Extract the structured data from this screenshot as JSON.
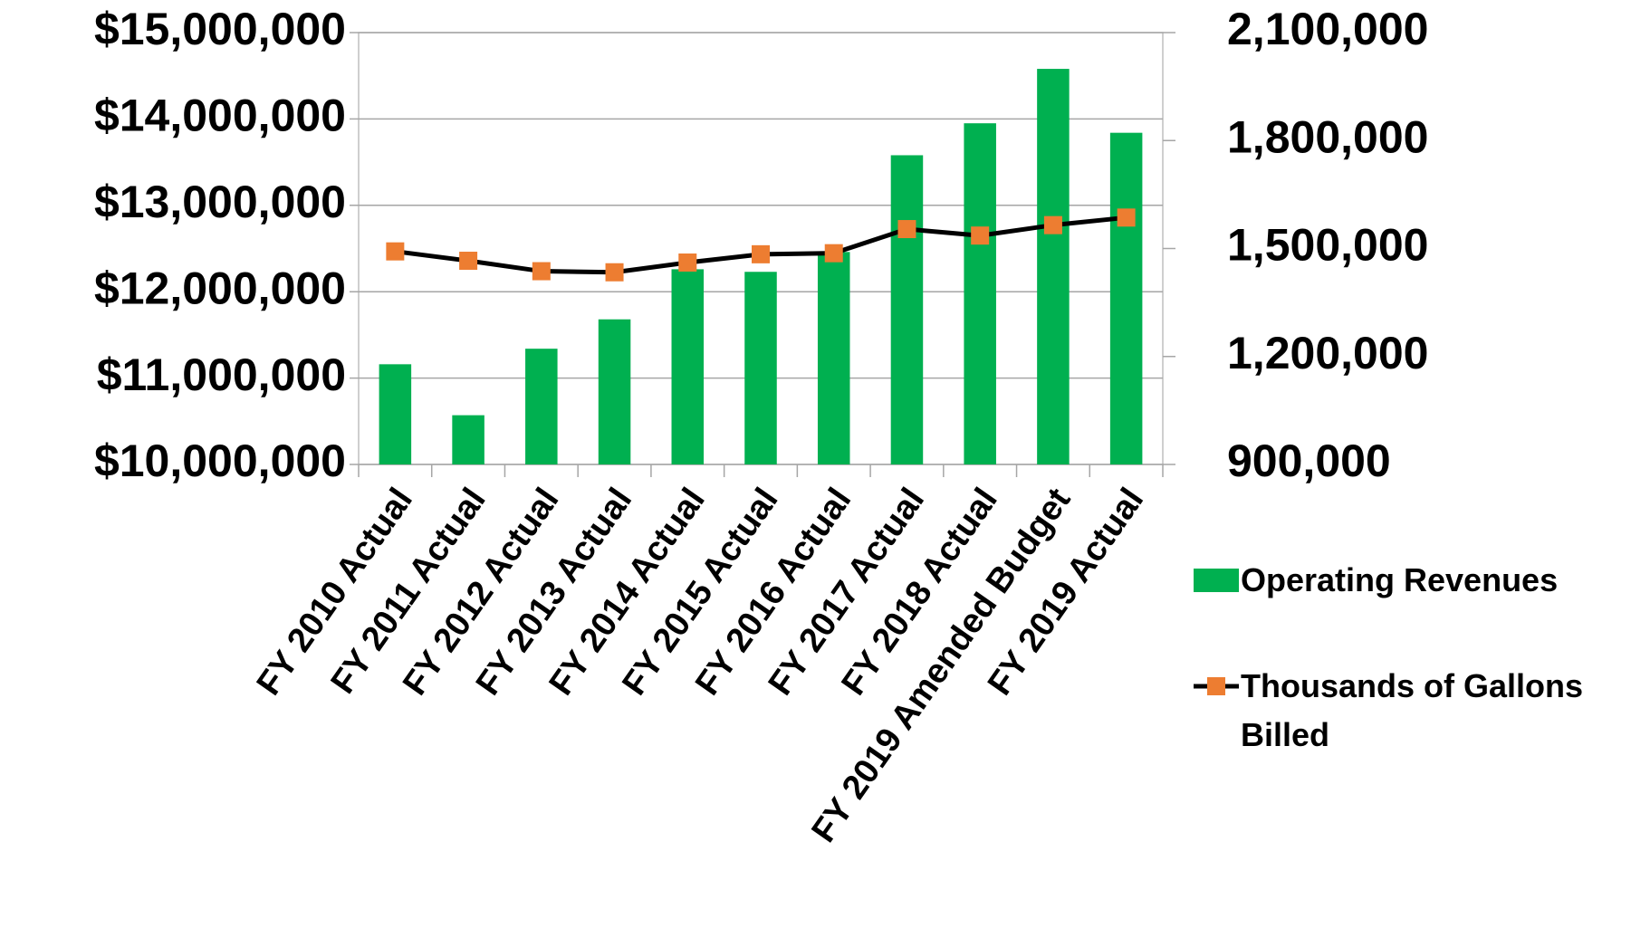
{
  "chart_data": {
    "type": "bar",
    "categories": [
      "FY 2010 Actual",
      "FY 2011 Actual",
      "FY 2012 Actual",
      "FY 2013 Actual",
      "FY 2014 Actual",
      "FY 2015 Actual",
      "FY 2016 Actual",
      "FY 2017 Actual",
      "FY 2018 Actual",
      "FY 2019 Amended Budget",
      "FY 2019 Actual"
    ],
    "series": [
      {
        "name": "Operating Revenues",
        "type": "bar",
        "color": "#00b050",
        "values": [
          11160000,
          10570000,
          11340000,
          11680000,
          12260000,
          12230000,
          12460000,
          13580000,
          13950000,
          14580000,
          13840000
        ]
      },
      {
        "name": "Thousands of Gallons Billed",
        "type": "line",
        "axis": "y2",
        "color": "#000000",
        "marker_color": "#ed7d31",
        "values": [
          1492000,
          1466000,
          1437000,
          1434000,
          1461000,
          1484000,
          1487000,
          1554000,
          1536000,
          1565000,
          1586000
        ]
      }
    ],
    "ylim": [
      10000000,
      15000000
    ],
    "yticks": [
      {
        "value": 10000000,
        "label": "$10,000,000"
      },
      {
        "value": 11000000,
        "label": "$11,000,000"
      },
      {
        "value": 12000000,
        "label": "$12,000,000"
      },
      {
        "value": 13000000,
        "label": "$13,000,000"
      },
      {
        "value": 14000000,
        "label": "$14,000,000"
      },
      {
        "value": 15000000,
        "label": "$15,000,000"
      }
    ],
    "y2lim": [
      900000,
      2100000
    ],
    "y2ticks": [
      {
        "value": 900000,
        "label": "900,000"
      },
      {
        "value": 1200000,
        "label": "1,200,000"
      },
      {
        "value": 1500000,
        "label": "1,500,000"
      },
      {
        "value": 1800000,
        "label": "1,800,000"
      },
      {
        "value": 2100000,
        "label": "2,100,000"
      }
    ],
    "grid": true,
    "legend": "right"
  }
}
